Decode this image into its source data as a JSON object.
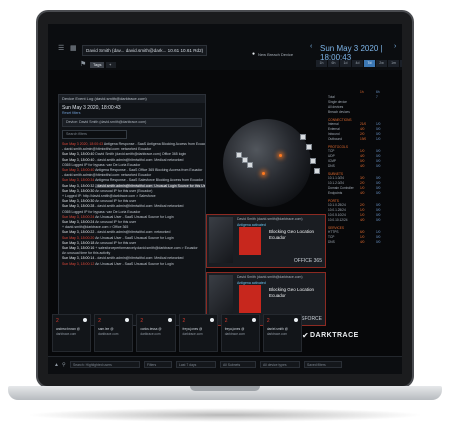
{
  "topbar": {
    "user_pill": "David Smith (dav... david.smith@dark... 10.61 10.61 Rd2)",
    "tag_button": "Tags",
    "device_label": "New Breach Device",
    "datetime": "Sun May 3 2020 | 18:00:43",
    "ranges": [
      "1h",
      "6h",
      "1d",
      "4d",
      "7d",
      "2w",
      "1m",
      "3m"
    ]
  },
  "logwin": {
    "title": "Device Event Log (david.smith@darktrace.com)",
    "date": "Sun May 3 2020, 18:00:43",
    "subtitle": "Reset filters",
    "filter": "Device: David Smith (david.smith@darktrace.com)",
    "search": "Search filters",
    "lines": [
      {
        "t": "Sun May 3 2020, 18:00:43",
        "d": "Antigena Response - SaaS Antigena Blocking Access from Ecuador",
        "alert": true
      },
      {
        "t": "",
        "d": "- david.smith.admin@hitmiwithd.com: networked Ecuador",
        "alert": false
      },
      {
        "t": "Sun May 3, 18:00:40",
        "d": "David Smith (david.smith@darktrace.com) Office 365 login",
        "alert": false
      },
      {
        "t": "Sun May 3, 18:00:40",
        "d": "- david.smith.admin@hitmiwithd.com: Medical networked",
        "alert": false
      },
      {
        "t": "",
        "d": "O365 Logged IP for bypass: van De Loria Ecuador",
        "alert": false
      },
      {
        "t": "Sun May 3, 18:00:40",
        "d": "Antigena Response - SaaS Office 365 Blocking Access from Ecuador",
        "alert": true
      },
      {
        "t": "",
        "d": "- david.smith.admin@hitmiwithd.com: networked Ecuador",
        "alert": false
      },
      {
        "t": "Sun May 3, 18:00:34",
        "d": "Antigena Response - SaaS Salesforce Blocking Access from Ecuador",
        "alert": true
      },
      {
        "t": "Sun May 3, 18:00:32",
        "d": "- david.smith.admin@hitmiwithd.com: Unusual Login Source for this User",
        "alert": false,
        "hl": true
      },
      {
        "t": "Sun May 3, 18:00:30",
        "d": "An unusual IP for this user (Ecuador)",
        "alert": false
      },
      {
        "t": "",
        "d": "+ Logged IP: http://david.smith@darktrace.com > Salesforce",
        "alert": false
      },
      {
        "t": "Sun May 3, 18:00:30",
        "d": "An unusual IP for this user",
        "alert": false
      },
      {
        "t": "Sun May 3, 18:00:28",
        "d": "- david.smith.admin@hitmiwithd.com: Medical networked",
        "alert": false
      },
      {
        "t": "",
        "d": "O365 Logged IP for bypass: van De Loria Ecuador",
        "alert": false
      },
      {
        "t": "Sun May 3, 18:00:24",
        "d": "An Unusual User - SaaS Unusual Source for Login",
        "alert": true
      },
      {
        "t": "Sun May 3, 18:00:24",
        "d": "An unusual IP for this user",
        "alert": false
      },
      {
        "t": "",
        "d": "+ david.smith@darktrace.com > Office 365",
        "alert": false
      },
      {
        "t": "Sun May 3, 18:00:22",
        "d": "- david.smith.admin@hitmiwithd.com: networked",
        "alert": false
      },
      {
        "t": "Sun May 3, 18:00:20",
        "d": "An Unusual User - SaaS Unusual Source for Login",
        "alert": true
      },
      {
        "t": "Sun May 3, 18:00:18",
        "d": "An unusual IP for this user",
        "alert": false
      },
      {
        "t": "Sun May 3, 18:00:16",
        "d": "+ salesforceperformancely.david.smith@darktrace.com > Ecuador",
        "alert": false
      },
      {
        "t": "",
        "d": "An unusual time for this activity",
        "alert": false
      },
      {
        "t": "Sun May 3, 18:00:14",
        "d": "- david.smith.admin@hitmiwithd.com: Medical networked",
        "alert": false
      },
      {
        "t": "Sun May 3, 18:00:12",
        "d": "An Unusual User - SaaS Unusual Source for Login",
        "alert": true
      }
    ]
  },
  "cards": [
    {
      "hdr": "David Smith (david.smith@darktrace.com)",
      "badge": "Antigena activated",
      "title": "Blocking Geo Location",
      "sub": "Ecuador",
      "source": "OFFICE 365"
    },
    {
      "hdr": "David Smith (david.smith@darktrace.com)",
      "badge": "Antigena activated",
      "title": "Blocking Geo Location",
      "sub": "Ecuador",
      "source": "SALESFORCE"
    }
  ],
  "stats": {
    "headers": [
      "",
      "1h",
      "6h"
    ],
    "sections": [
      {
        "head": "",
        "rows": [
          [
            "Total",
            "",
            "7"
          ],
          [
            "Single device",
            "",
            ""
          ],
          [
            "All devices",
            "",
            ""
          ],
          [
            "Breach devices",
            "",
            ""
          ]
        ]
      },
      {
        "head": "CONNECTIONS",
        "rows": [
          [
            "Internal",
            "21/0",
            "1/0"
          ],
          [
            "External",
            "4/0",
            "0/0"
          ],
          [
            "Inbound",
            "2/0",
            "0/0"
          ],
          [
            "Outbound",
            "19/0",
            "1/0"
          ]
        ]
      },
      {
        "head": "PROTOCOLS",
        "rows": [
          [
            "TCP",
            "1/0",
            "0/0"
          ],
          [
            "UDP",
            "4/0",
            "0/0"
          ],
          [
            "ICMP",
            "0/0",
            "0/0"
          ],
          [
            "DNS",
            "4/0",
            "0/0"
          ]
        ]
      },
      {
        "head": "SUBNETS",
        "rows": [
          [
            "10.1.1.0/24",
            "3/0",
            "0/0"
          ],
          [
            "10.1.2.0/24",
            "2/0",
            "0/0"
          ],
          [
            "Domain Controller",
            "1/0",
            "0/0"
          ],
          [
            "Endpoints",
            "4/0",
            "0/0"
          ]
        ]
      },
      {
        "head": "PORTS",
        "rows": [
          [
            "10.1.0.25/24",
            "2/0",
            "0/0"
          ],
          [
            "10.0.1.25/24",
            "1/0",
            "0/0"
          ],
          [
            "10.0.5.10/24",
            "1/0",
            "0/0"
          ],
          [
            "10.0.10.12/24",
            "4/0",
            "0/0"
          ]
        ]
      },
      {
        "head": "SERVICES",
        "rows": [
          [
            "HTTPS",
            "6/0",
            "1/0"
          ],
          [
            "TCP",
            "1/0",
            "0/0"
          ],
          [
            "DNS",
            "4/0",
            "0/0"
          ]
        ]
      }
    ]
  },
  "bottom_cards": [
    {
      "num": "2",
      "who": "andrew.brown @",
      "who2": "darktrace.com"
    },
    {
      "num": "2",
      "who": "sam.lee @",
      "who2": "darktrace.com"
    },
    {
      "num": "2",
      "who": "carlos.tessa @",
      "who2": "darktrace.com"
    },
    {
      "num": "2",
      "who": "freya.jones @",
      "who2": "darktrace.com"
    },
    {
      "num": "2",
      "who": "freya.jones @",
      "who2": "darktrace.com"
    },
    {
      "num": "2",
      "who": "daniel.smith @",
      "who2": "darktrace.com"
    }
  ],
  "logo": "DARKTRACE",
  "footer": {
    "search_placeholder": "Search: Highlighted users",
    "fields": [
      "Filters",
      "Last 7 days",
      "All Subnets",
      "All device types",
      "Saved filters"
    ]
  },
  "colors": {
    "alert": "#e24a3b",
    "accent": "#7db4e8",
    "lock": "#c7271d",
    "orange": "#e46b2f"
  }
}
